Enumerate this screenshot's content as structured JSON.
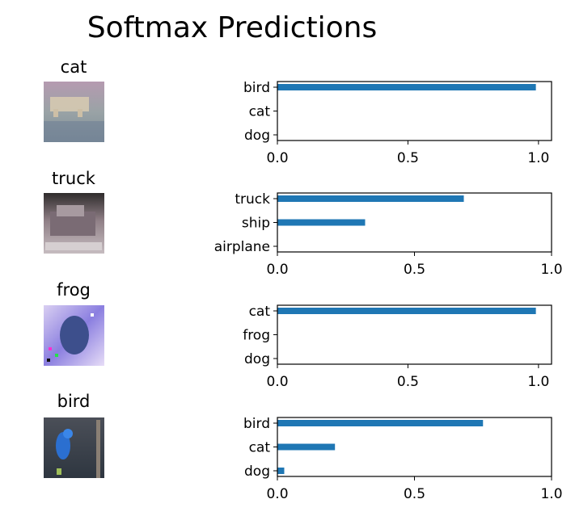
{
  "title": "Softmax Predictions",
  "chart_data": [
    {
      "type": "bar",
      "orientation": "horizontal",
      "image_label": "cat",
      "categories": [
        "bird",
        "cat",
        "dog"
      ],
      "values": [
        0.99,
        0.0,
        0.0
      ],
      "xlim": [
        0,
        1.05
      ],
      "xticks": [
        "0.0",
        "0.5",
        "1.0"
      ],
      "bar_color": "#1f77b4"
    },
    {
      "type": "bar",
      "orientation": "horizontal",
      "image_label": "truck",
      "categories": [
        "truck",
        "ship",
        "airplane"
      ],
      "values": [
        0.68,
        0.32,
        0.0
      ],
      "xlim": [
        0,
        1.0
      ],
      "xticks": [
        "0.0",
        "0.5",
        "1.0"
      ],
      "bar_color": "#1f77b4"
    },
    {
      "type": "bar",
      "orientation": "horizontal",
      "image_label": "frog",
      "categories": [
        "cat",
        "frog",
        "dog"
      ],
      "values": [
        0.99,
        0.0,
        0.0
      ],
      "xlim": [
        0,
        1.05
      ],
      "xticks": [
        "0.0",
        "0.5",
        "1.0"
      ],
      "bar_color": "#1f77b4"
    },
    {
      "type": "bar",
      "orientation": "horizontal",
      "image_label": "bird",
      "categories": [
        "bird",
        "cat",
        "dog"
      ],
      "values": [
        0.75,
        0.21,
        0.025
      ],
      "xlim": [
        0,
        1.0
      ],
      "xticks": [
        "0.0",
        "0.5",
        "1.0"
      ],
      "bar_color": "#1f77b4"
    }
  ]
}
